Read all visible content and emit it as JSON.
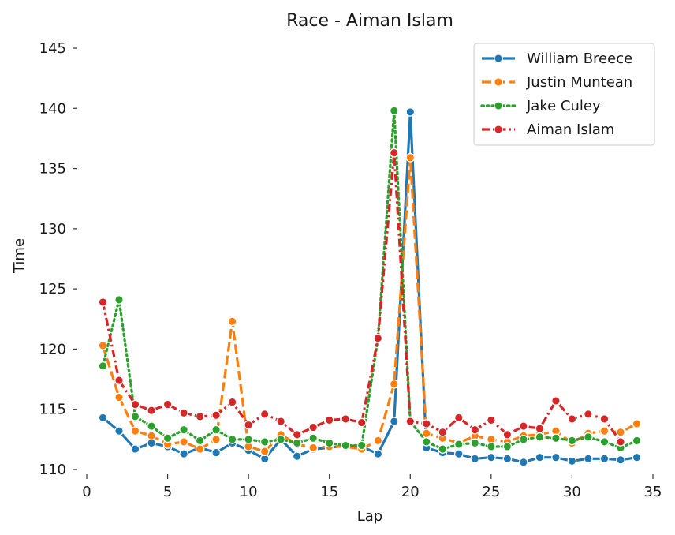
{
  "chart_data": {
    "type": "line",
    "title": "Race - Aiman Islam",
    "xlabel": "Lap",
    "ylabel": "Time",
    "xlim": [
      0,
      35
    ],
    "ylim": [
      110,
      145
    ],
    "xticks": [
      0,
      5,
      10,
      15,
      20,
      25,
      30,
      35
    ],
    "yticks": [
      110,
      115,
      120,
      125,
      130,
      135,
      140,
      145
    ],
    "grid": false,
    "legend_position": "top-right",
    "x": [
      1,
      2,
      3,
      4,
      5,
      6,
      7,
      8,
      9,
      10,
      11,
      12,
      13,
      14,
      15,
      16,
      17,
      18,
      19,
      20,
      21,
      22,
      23,
      24,
      25,
      26,
      27,
      28,
      29,
      30,
      31,
      32,
      33,
      34
    ],
    "series": [
      {
        "name": "William Breece",
        "color": "#1f77b4",
        "dash": "solid",
        "values": [
          114.3,
          113.2,
          111.7,
          112.2,
          111.9,
          111.3,
          111.8,
          111.4,
          112.2,
          111.6,
          110.9,
          112.5,
          111.1,
          111.7,
          111.8,
          112.0,
          111.9,
          111.3,
          114.0,
          139.7,
          111.8,
          111.4,
          111.3,
          110.9,
          111.0,
          110.9,
          110.6,
          111.0,
          111.0,
          110.7,
          110.9,
          110.9,
          110.8,
          111.0
        ]
      },
      {
        "name": "Justin Muntean",
        "color": "#ff7f0e",
        "dash": "dashed",
        "values": [
          120.3,
          116.0,
          113.2,
          112.8,
          112.1,
          112.3,
          111.7,
          112.5,
          122.3,
          111.9,
          111.5,
          112.9,
          112.1,
          111.8,
          111.9,
          111.9,
          111.7,
          112.4,
          117.1,
          135.9,
          113.0,
          112.6,
          112.2,
          112.8,
          112.5,
          112.3,
          112.8,
          112.9,
          113.2,
          112.2,
          113.0,
          113.2,
          113.1,
          113.8
        ]
      },
      {
        "name": "Jake Culey",
        "color": "#2ca02c",
        "dash": "dotted",
        "values": [
          118.6,
          124.1,
          114.4,
          113.6,
          112.6,
          113.3,
          112.4,
          113.3,
          112.5,
          112.5,
          112.3,
          112.5,
          112.2,
          112.6,
          112.2,
          112.0,
          112.0,
          120.9,
          139.8,
          114.0,
          112.3,
          111.7,
          112.1,
          112.2,
          111.9,
          111.9,
          112.5,
          112.7,
          112.6,
          112.4,
          112.7,
          112.3,
          111.8,
          112.4
        ]
      },
      {
        "name": "Aiman Islam",
        "color": "#d62728",
        "dash": "dashdot",
        "values": [
          123.9,
          117.4,
          115.4,
          114.9,
          115.4,
          114.7,
          114.4,
          114.5,
          115.6,
          113.7,
          114.6,
          114.0,
          112.9,
          113.5,
          114.1,
          114.2,
          113.9,
          120.9,
          136.3,
          114.0,
          113.8,
          113.1,
          114.3,
          113.3,
          114.1,
          112.9,
          113.6,
          113.4,
          115.7,
          114.2,
          114.6,
          114.2,
          112.3,
          null
        ]
      }
    ]
  }
}
